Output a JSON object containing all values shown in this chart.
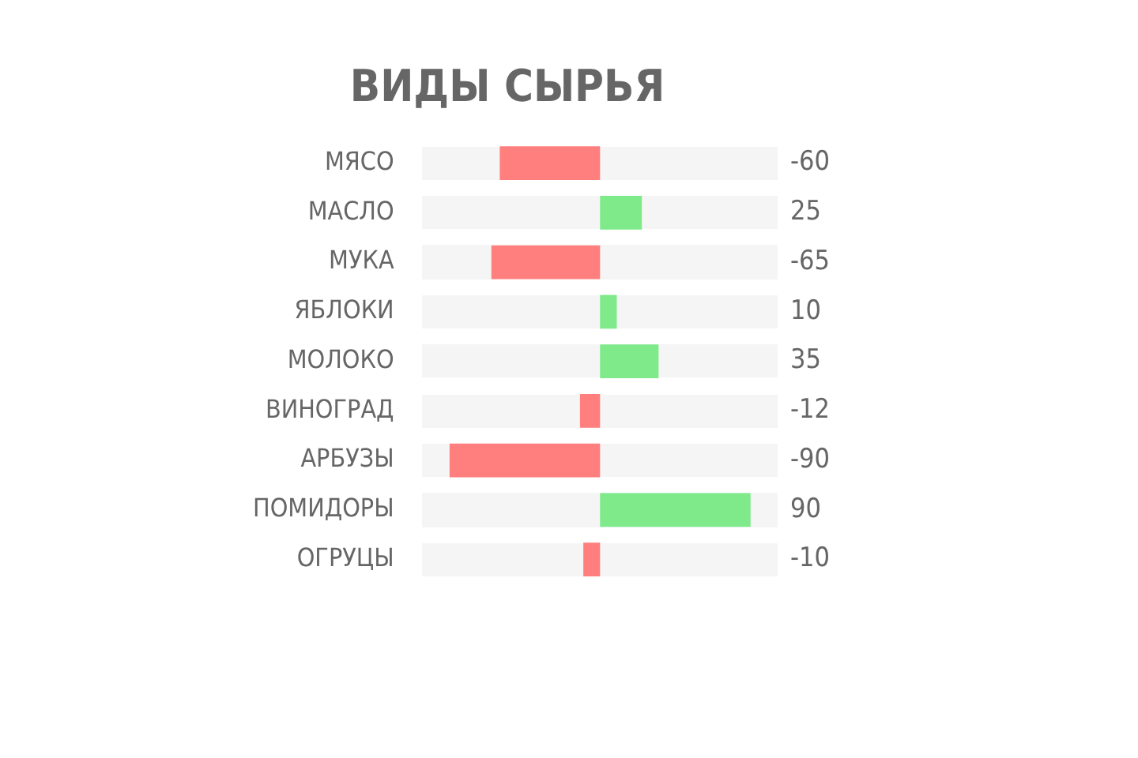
{
  "chart_data": {
    "type": "bar",
    "orientation": "horizontal",
    "title": "ВИДЫ СЫРЬЯ",
    "categories": [
      "МЯСО",
      "МАСЛО",
      "МУКА",
      "ЯБЛОКИ",
      "МОЛОКО",
      "ВИНОГРАД",
      "АРБУЗЫ",
      "ПОМИДОРЫ",
      "ОГРУЦЫ"
    ],
    "values": [
      -60,
      25,
      -65,
      10,
      35,
      -12,
      -90,
      90,
      -10
    ],
    "colors": [
      "#ff7f7f",
      "#7eea8a",
      "#ff7f7f",
      "#7eea8a",
      "#7eea8a",
      "#ff7f7f",
      "#ff7f7f",
      "#7eea8a",
      "#ff7f7f"
    ],
    "data_labels": true,
    "legend": false,
    "tick_labels": "y"
  }
}
